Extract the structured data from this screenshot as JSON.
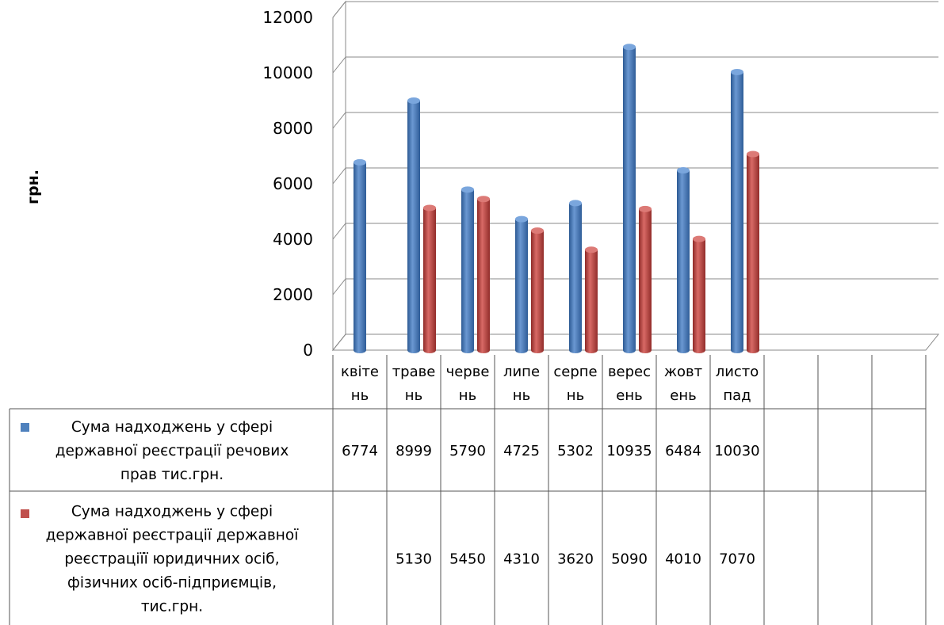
{
  "chart_data": {
    "type": "bar",
    "ylabel": "грн.",
    "ylim": [
      0,
      12000
    ],
    "yticks": [
      0,
      2000,
      4000,
      6000,
      8000,
      10000,
      12000
    ],
    "grid": true,
    "categories": [
      [
        "квіте",
        "нь"
      ],
      [
        "траве",
        "нь"
      ],
      [
        "черве",
        "нь"
      ],
      [
        "липе",
        "нь"
      ],
      [
        "серпе",
        "нь"
      ],
      [
        "верес",
        "ень"
      ],
      [
        "жовт",
        "ень"
      ],
      [
        "листо",
        "пад"
      ],
      [
        "",
        ""
      ],
      [
        "",
        ""
      ],
      [
        "",
        ""
      ]
    ],
    "series": [
      {
        "name": "Сума надходжень у сфері державної реєстрації речових прав тис.грн.",
        "legend_lines": [
          "Сума надходжень у сфері",
          "державної реєстрації речових",
          "прав тис.грн."
        ],
        "color": "#4F81BD",
        "values": [
          6774,
          8999,
          5790,
          4725,
          5302,
          10935,
          6484,
          10030,
          null,
          null,
          null
        ]
      },
      {
        "name": "Сума надходжень у сфері державної реєстрації державної реєстраціїї юридичних осіб, фізичних осіб-підприємців, тис.грн.",
        "legend_lines": [
          "Сума надходжень у сфері",
          "державної реєстрації державної",
          "реєстраціїї юридичних осіб,",
          "фізичних осіб-підприємців,",
          "тис.грн."
        ],
        "color": "#C0504D",
        "values": [
          null,
          5130,
          5450,
          4310,
          3620,
          5090,
          4010,
          7070,
          null,
          null,
          null
        ]
      }
    ]
  }
}
